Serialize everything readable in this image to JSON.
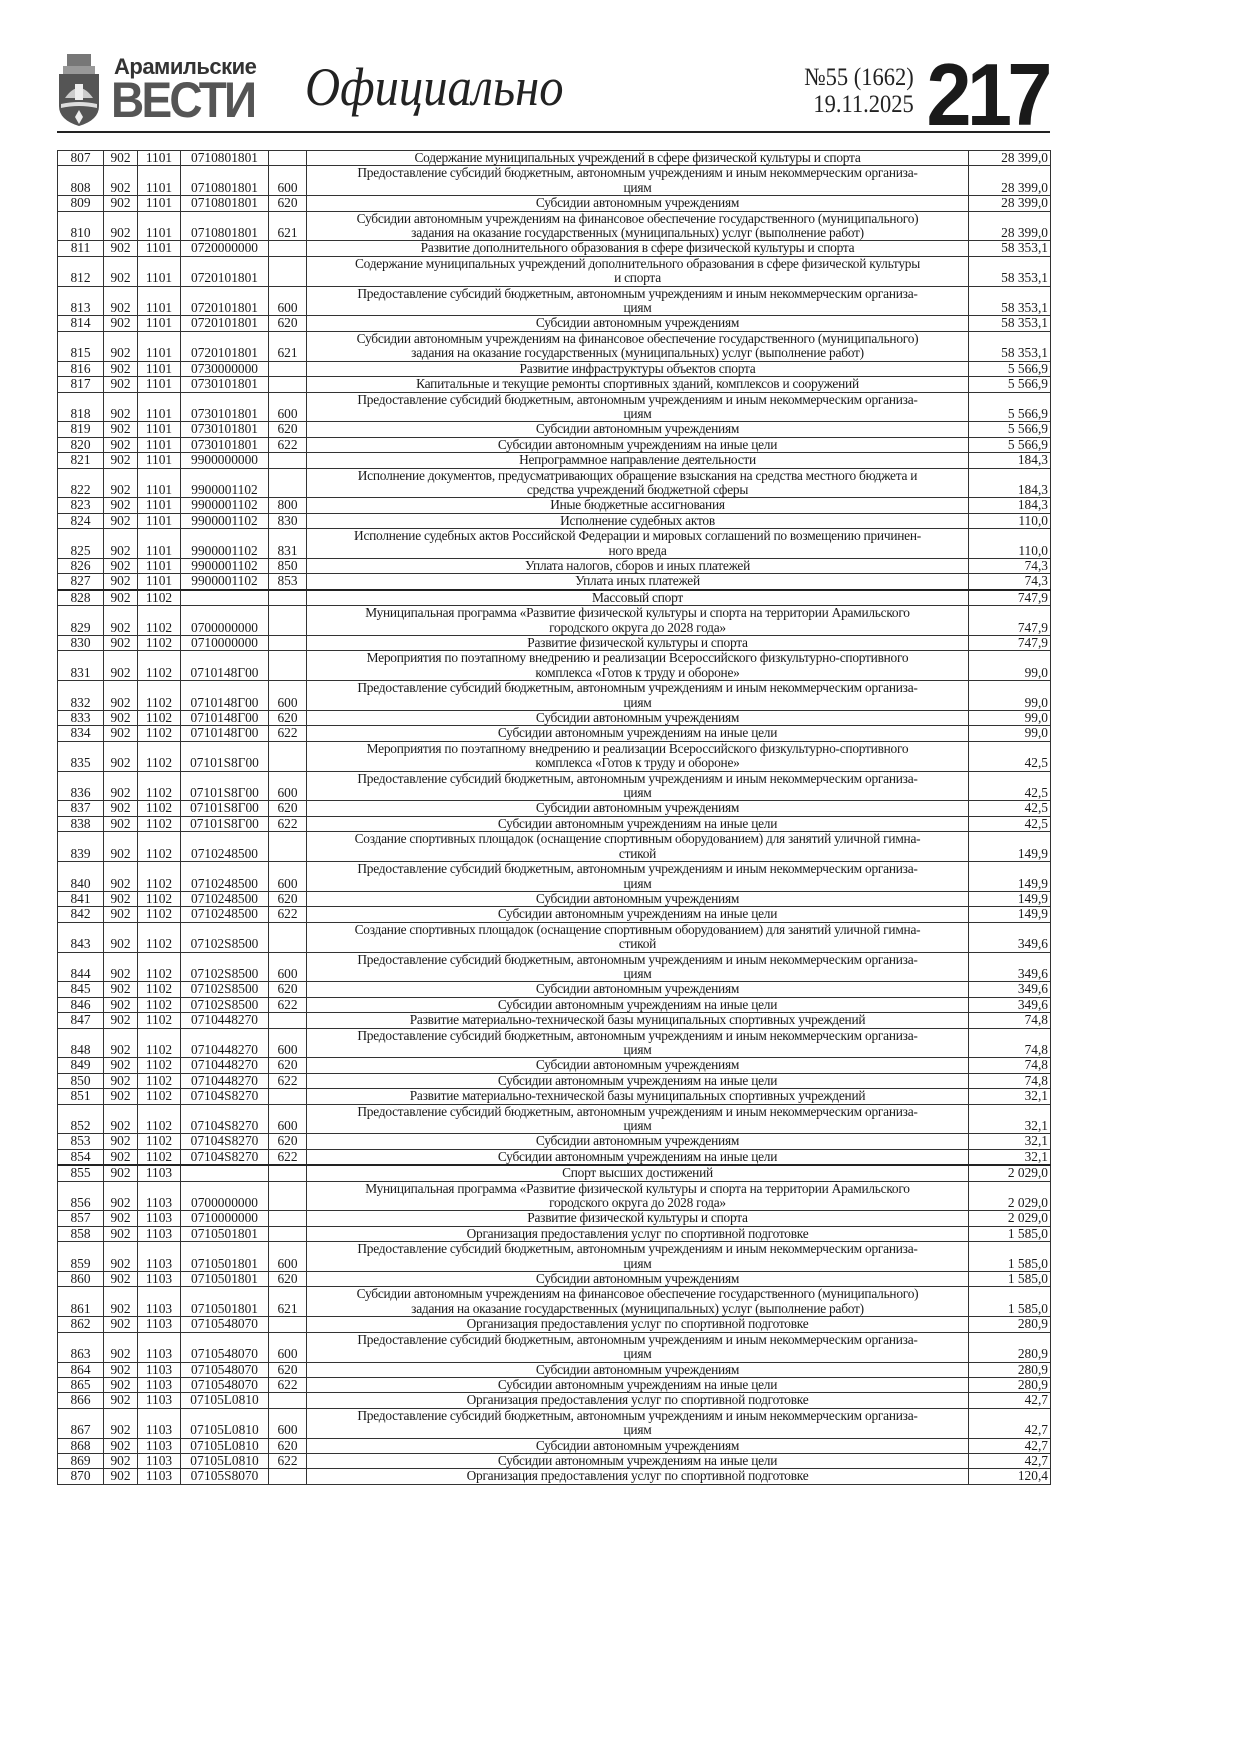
{
  "header": {
    "brand_top": "Арамильские",
    "brand_main": "ВЕСТИ",
    "section": "Официально",
    "issue": "№55 (1662)",
    "date": "19.11.2025",
    "page": "217"
  },
  "table": {
    "rows": [
      {
        "n": "807",
        "a": "902",
        "s": "1101",
        "code": "0710801801",
        "t": "",
        "desc": "Содержание муниципальных учреждений в сфере физической культуры и спорта",
        "sum": "28 399,0"
      },
      {
        "n": "808",
        "a": "902",
        "s": "1101",
        "code": "0710801801",
        "t": "600",
        "desc": "Предоставление субсидий бюджетным, автономным учреждениям и иным некоммерческим организа-\nциям",
        "sum": "28 399,0"
      },
      {
        "n": "809",
        "a": "902",
        "s": "1101",
        "code": "0710801801",
        "t": "620",
        "desc": "Субсидии автономным учреждениям",
        "sum": "28 399,0"
      },
      {
        "n": "810",
        "a": "902",
        "s": "1101",
        "code": "0710801801",
        "t": "621",
        "desc": "Субсидии автономным учреждениям на финансовое обеспечение государственного (муниципального)\nзадания на оказание государственных (муниципальных) услуг (выполнение работ)",
        "sum": "28 399,0"
      },
      {
        "n": "811",
        "a": "902",
        "s": "1101",
        "code": "0720000000",
        "t": "",
        "desc": "Развитие дополнительного образования в сфере физической культуры и спорта",
        "sum": "58 353,1"
      },
      {
        "n": "812",
        "a": "902",
        "s": "1101",
        "code": "0720101801",
        "t": "",
        "desc": "Содержание муниципальных учреждений дополнительного образования в сфере физической культуры\nи спорта",
        "sum": "58 353,1"
      },
      {
        "n": "813",
        "a": "902",
        "s": "1101",
        "code": "0720101801",
        "t": "600",
        "desc": "Предоставление субсидий бюджетным, автономным учреждениям и иным некоммерческим организа-\nциям",
        "sum": "58 353,1"
      },
      {
        "n": "814",
        "a": "902",
        "s": "1101",
        "code": "0720101801",
        "t": "620",
        "desc": "Субсидии автономным учреждениям",
        "sum": "58 353,1"
      },
      {
        "n": "815",
        "a": "902",
        "s": "1101",
        "code": "0720101801",
        "t": "621",
        "desc": "Субсидии автономным учреждениям на финансовое обеспечение государственного (муниципального)\nзадания на оказание государственных (муниципальных) услуг (выполнение работ)",
        "sum": "58 353,1"
      },
      {
        "n": "816",
        "a": "902",
        "s": "1101",
        "code": "0730000000",
        "t": "",
        "desc": "Развитие инфраструктуры объектов спорта",
        "sum": "5 566,9"
      },
      {
        "n": "817",
        "a": "902",
        "s": "1101",
        "code": "0730101801",
        "t": "",
        "desc": "Капитальные и текущие ремонты спортивных зданий, комплексов и сооружений",
        "sum": "5 566,9"
      },
      {
        "n": "818",
        "a": "902",
        "s": "1101",
        "code": "0730101801",
        "t": "600",
        "desc": "Предоставление субсидий бюджетным, автономным учреждениям и иным некоммерческим организа-\nциям",
        "sum": "5 566,9"
      },
      {
        "n": "819",
        "a": "902",
        "s": "1101",
        "code": "0730101801",
        "t": "620",
        "desc": "Субсидии автономным учреждениям",
        "sum": "5 566,9"
      },
      {
        "n": "820",
        "a": "902",
        "s": "1101",
        "code": "0730101801",
        "t": "622",
        "desc": "Субсидии автономным учреждениям на иные цели",
        "sum": "5 566,9"
      },
      {
        "n": "821",
        "a": "902",
        "s": "1101",
        "code": "9900000000",
        "t": "",
        "desc": "Непрограммное направление деятельности",
        "sum": "184,3"
      },
      {
        "n": "822",
        "a": "902",
        "s": "1101",
        "code": "9900001102",
        "t": "",
        "desc": "Исполнение документов, предусматривающих обращение взыскания на средства местного бюджета и\nсредства учреждений бюджетной сферы",
        "sum": "184,3"
      },
      {
        "n": "823",
        "a": "902",
        "s": "1101",
        "code": "9900001102",
        "t": "800",
        "desc": "Иные бюджетные ассигнования",
        "sum": "184,3"
      },
      {
        "n": "824",
        "a": "902",
        "s": "1101",
        "code": "9900001102",
        "t": "830",
        "desc": "Исполнение судебных актов",
        "sum": "110,0"
      },
      {
        "n": "825",
        "a": "902",
        "s": "1101",
        "code": "9900001102",
        "t": "831",
        "desc": "Исполнение судебных актов Российской Федерации и мировых соглашений по возмещению причинен-\nного вреда",
        "sum": "110,0"
      },
      {
        "n": "826",
        "a": "902",
        "s": "1101",
        "code": "9900001102",
        "t": "850",
        "desc": "Уплата налогов, сборов и иных платежей",
        "sum": "74,3"
      },
      {
        "n": "827",
        "a": "902",
        "s": "1101",
        "code": "9900001102",
        "t": "853",
        "desc": "Уплата иных платежей",
        "sum": "74,3"
      },
      {
        "n": "828",
        "a": "902",
        "s": "1102",
        "code": "",
        "t": "",
        "desc": "Массовый спорт",
        "sum": "747,9",
        "sec": true
      },
      {
        "n": "829",
        "a": "902",
        "s": "1102",
        "code": "0700000000",
        "t": "",
        "desc": "Муниципальная программа «Развитие физической культуры и спорта на территории Арамильского\nгородского округа до 2028 года»",
        "sum": "747,9"
      },
      {
        "n": "830",
        "a": "902",
        "s": "1102",
        "code": "0710000000",
        "t": "",
        "desc": "Развитие физической культуры и спорта",
        "sum": "747,9"
      },
      {
        "n": "831",
        "a": "902",
        "s": "1102",
        "code": "0710148Г00",
        "t": "",
        "desc": "Мероприятия по поэтапному внедрению и реализации Всероссийского физкультурно-спортивного\nкомплекса «Готов к труду и обороне»",
        "sum": "99,0"
      },
      {
        "n": "832",
        "a": "902",
        "s": "1102",
        "code": "0710148Г00",
        "t": "600",
        "desc": "Предоставление субсидий бюджетным, автономным учреждениям и иным некоммерческим организа-\nциям",
        "sum": "99,0"
      },
      {
        "n": "833",
        "a": "902",
        "s": "1102",
        "code": "0710148Г00",
        "t": "620",
        "desc": "Субсидии автономным учреждениям",
        "sum": "99,0"
      },
      {
        "n": "834",
        "a": "902",
        "s": "1102",
        "code": "0710148Г00",
        "t": "622",
        "desc": "Субсидии автономным учреждениям на иные цели",
        "sum": "99,0"
      },
      {
        "n": "835",
        "a": "902",
        "s": "1102",
        "code": "07101S8Г00",
        "t": "",
        "desc": "Мероприятия по поэтапному внедрению и реализации Всероссийского физкультурно-спортивного\nкомплекса «Готов к труду и обороне»",
        "sum": "42,5"
      },
      {
        "n": "836",
        "a": "902",
        "s": "1102",
        "code": "07101S8Г00",
        "t": "600",
        "desc": "Предоставление субсидий бюджетным, автономным учреждениям и иным некоммерческим организа-\nциям",
        "sum": "42,5"
      },
      {
        "n": "837",
        "a": "902",
        "s": "1102",
        "code": "07101S8Г00",
        "t": "620",
        "desc": "Субсидии автономным учреждениям",
        "sum": "42,5"
      },
      {
        "n": "838",
        "a": "902",
        "s": "1102",
        "code": "07101S8Г00",
        "t": "622",
        "desc": "Субсидии автономным учреждениям на иные цели",
        "sum": "42,5"
      },
      {
        "n": "839",
        "a": "902",
        "s": "1102",
        "code": "0710248500",
        "t": "",
        "desc": "Создание спортивных площадок (оснащение спортивным оборудованием) для занятий уличной гимна-\nстикой",
        "sum": "149,9"
      },
      {
        "n": "840",
        "a": "902",
        "s": "1102",
        "code": "0710248500",
        "t": "600",
        "desc": "Предоставление субсидий бюджетным, автономным учреждениям и иным некоммерческим организа-\nциям",
        "sum": "149,9"
      },
      {
        "n": "841",
        "a": "902",
        "s": "1102",
        "code": "0710248500",
        "t": "620",
        "desc": "Субсидии автономным учреждениям",
        "sum": "149,9"
      },
      {
        "n": "842",
        "a": "902",
        "s": "1102",
        "code": "0710248500",
        "t": "622",
        "desc": "Субсидии автономным учреждениям на иные цели",
        "sum": "149,9"
      },
      {
        "n": "843",
        "a": "902",
        "s": "1102",
        "code": "07102S8500",
        "t": "",
        "desc": "Создание спортивных площадок (оснащение спортивным оборудованием) для занятий уличной гимна-\nстикой",
        "sum": "349,6"
      },
      {
        "n": "844",
        "a": "902",
        "s": "1102",
        "code": "07102S8500",
        "t": "600",
        "desc": "Предоставление субсидий бюджетным, автономным учреждениям и иным некоммерческим организа-\nциям",
        "sum": "349,6"
      },
      {
        "n": "845",
        "a": "902",
        "s": "1102",
        "code": "07102S8500",
        "t": "620",
        "desc": "Субсидии автономным учреждениям",
        "sum": "349,6"
      },
      {
        "n": "846",
        "a": "902",
        "s": "1102",
        "code": "07102S8500",
        "t": "622",
        "desc": "Субсидии автономным учреждениям на иные цели",
        "sum": "349,6"
      },
      {
        "n": "847",
        "a": "902",
        "s": "1102",
        "code": "0710448270",
        "t": "",
        "desc": "Развитие материально-технической базы муниципальных спортивных учреждений",
        "sum": "74,8"
      },
      {
        "n": "848",
        "a": "902",
        "s": "1102",
        "code": "0710448270",
        "t": "600",
        "desc": "Предоставление субсидий бюджетным, автономным учреждениям и иным некоммерческим организа-\nциям",
        "sum": "74,8"
      },
      {
        "n": "849",
        "a": "902",
        "s": "1102",
        "code": "0710448270",
        "t": "620",
        "desc": "Субсидии автономным учреждениям",
        "sum": "74,8"
      },
      {
        "n": "850",
        "a": "902",
        "s": "1102",
        "code": "0710448270",
        "t": "622",
        "desc": "Субсидии автономным учреждениям на иные цели",
        "sum": "74,8"
      },
      {
        "n": "851",
        "a": "902",
        "s": "1102",
        "code": "07104S8270",
        "t": "",
        "desc": "Развитие материально-технической базы муниципальных спортивных учреждений",
        "sum": "32,1"
      },
      {
        "n": "852",
        "a": "902",
        "s": "1102",
        "code": "07104S8270",
        "t": "600",
        "desc": "Предоставление субсидий бюджетным, автономным учреждениям и иным некоммерческим организа-\nциям",
        "sum": "32,1"
      },
      {
        "n": "853",
        "a": "902",
        "s": "1102",
        "code": "07104S8270",
        "t": "620",
        "desc": "Субсидии автономным учреждениям",
        "sum": "32,1"
      },
      {
        "n": "854",
        "a": "902",
        "s": "1102",
        "code": "07104S8270",
        "t": "622",
        "desc": "Субсидии автономным учреждениям на иные цели",
        "sum": "32,1"
      },
      {
        "n": "855",
        "a": "902",
        "s": "1103",
        "code": "",
        "t": "",
        "desc": "Спорт высших достижений",
        "sum": "2 029,0",
        "sec": true
      },
      {
        "n": "856",
        "a": "902",
        "s": "1103",
        "code": "0700000000",
        "t": "",
        "desc": "Муниципальная программа «Развитие физической культуры и спорта на территории Арамильского\nгородского округа до 2028 года»",
        "sum": "2 029,0"
      },
      {
        "n": "857",
        "a": "902",
        "s": "1103",
        "code": "0710000000",
        "t": "",
        "desc": "Развитие физической культуры и спорта",
        "sum": "2 029,0"
      },
      {
        "n": "858",
        "a": "902",
        "s": "1103",
        "code": "0710501801",
        "t": "",
        "desc": "Организация предоставления услуг по спортивной подготовке",
        "sum": "1 585,0"
      },
      {
        "n": "859",
        "a": "902",
        "s": "1103",
        "code": "0710501801",
        "t": "600",
        "desc": "Предоставление субсидий бюджетным, автономным учреждениям и иным некоммерческим организа-\nциям",
        "sum": "1 585,0"
      },
      {
        "n": "860",
        "a": "902",
        "s": "1103",
        "code": "0710501801",
        "t": "620",
        "desc": "Субсидии автономным учреждениям",
        "sum": "1 585,0"
      },
      {
        "n": "861",
        "a": "902",
        "s": "1103",
        "code": "0710501801",
        "t": "621",
        "desc": "Субсидии автономным учреждениям на финансовое обеспечение государственного (муниципального)\nзадания на оказание государственных (муниципальных) услуг (выполнение работ)",
        "sum": "1 585,0"
      },
      {
        "n": "862",
        "a": "902",
        "s": "1103",
        "code": "0710548070",
        "t": "",
        "desc": "Организация предоставления услуг по спортивной подготовке",
        "sum": "280,9"
      },
      {
        "n": "863",
        "a": "902",
        "s": "1103",
        "code": "0710548070",
        "t": "600",
        "desc": "Предоставление субсидий бюджетным, автономным учреждениям и иным некоммерческим организа-\nциям",
        "sum": "280,9"
      },
      {
        "n": "864",
        "a": "902",
        "s": "1103",
        "code": "0710548070",
        "t": "620",
        "desc": "Субсидии автономным учреждениям",
        "sum": "280,9"
      },
      {
        "n": "865",
        "a": "902",
        "s": "1103",
        "code": "0710548070",
        "t": "622",
        "desc": "Субсидии автономным учреждениям на иные цели",
        "sum": "280,9"
      },
      {
        "n": "866",
        "a": "902",
        "s": "1103",
        "code": "07105L0810",
        "t": "",
        "desc": "Организация предоставления услуг по спортивной подготовке",
        "sum": "42,7"
      },
      {
        "n": "867",
        "a": "902",
        "s": "1103",
        "code": "07105L0810",
        "t": "600",
        "desc": "Предоставление субсидий бюджетным, автономным учреждениям и иным некоммерческим организа-\nциям",
        "sum": "42,7"
      },
      {
        "n": "868",
        "a": "902",
        "s": "1103",
        "code": "07105L0810",
        "t": "620",
        "desc": "Субсидии автономным учреждениям",
        "sum": "42,7"
      },
      {
        "n": "869",
        "a": "902",
        "s": "1103",
        "code": "07105L0810",
        "t": "622",
        "desc": "Субсидии автономным учреждениям на иные цели",
        "sum": "42,7"
      },
      {
        "n": "870",
        "a": "902",
        "s": "1103",
        "code": "07105S8070",
        "t": "",
        "desc": "Организация предоставления услуг по спортивной подготовке",
        "sum": "120,4"
      }
    ]
  }
}
